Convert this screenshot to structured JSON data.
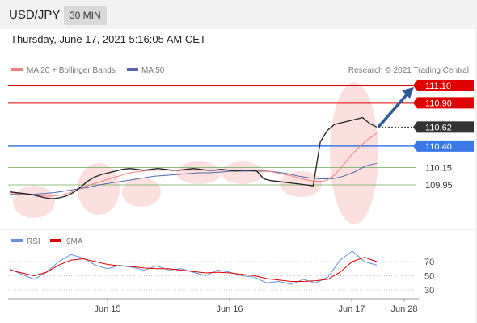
{
  "header": {
    "symbol": "USD/JPY",
    "timeframe": "30 MIN"
  },
  "datetime": "Thursday, June 17, 2021 5:16:05 AM CET",
  "legend": {
    "ma_bollinger": "MA 20 + Bollinger Bands",
    "ma50": "MA 50",
    "credit": "Research © 2021 Trading Central",
    "rsi": "RSI",
    "rsi_ma": "9MA"
  },
  "colors": {
    "resistance": "#e00000",
    "support_blue": "#3b78e7",
    "support_green": "#6aaa55",
    "current": "#333333",
    "price": "#222222",
    "ma20": "#f08080",
    "ma50": "#5566aa",
    "band": "#fbd5d5",
    "arrow": "#2e5a9c",
    "rsi": "#6a8fd8",
    "rsi_ma": "#e00000"
  },
  "chart_data": [
    {
      "type": "line",
      "y_range": [
        109.7,
        111.2
      ],
      "levels": [
        {
          "value": 111.1,
          "label": "111.10",
          "kind": "resistance"
        },
        {
          "value": 110.9,
          "label": "110.90",
          "kind": "resistance"
        },
        {
          "value": 110.62,
          "label": "110.62",
          "kind": "current"
        },
        {
          "value": 110.4,
          "label": "110.40",
          "kind": "support-blue"
        },
        {
          "value": 110.15,
          "label": "110.15",
          "kind": "support-green"
        },
        {
          "value": 109.95,
          "label": "109.95",
          "kind": "support-green"
        }
      ],
      "x_ticks": [
        "Jun 15",
        "Jun 16",
        "Jun 17",
        "Jun 28"
      ],
      "series": [
        {
          "name": "MA 20 + Bollinger Bands"
        },
        {
          "name": "MA 50"
        }
      ],
      "price": [
        109.87,
        109.86,
        109.85,
        109.84,
        109.82,
        109.8,
        109.79,
        109.8,
        109.82,
        109.86,
        109.92,
        109.99,
        110.04,
        110.07,
        110.09,
        110.11,
        110.13,
        110.14,
        110.13,
        110.12,
        110.13,
        110.14,
        110.13,
        110.12,
        110.12,
        110.13,
        110.14,
        110.13,
        110.12,
        110.12,
        110.13,
        110.12,
        110.11,
        110.12,
        110.12,
        110.11,
        110.02,
        110.0,
        109.99,
        109.98,
        109.97,
        109.96,
        109.95,
        109.94,
        110.45,
        110.58,
        110.65,
        110.67,
        110.69,
        110.71,
        110.73,
        110.66,
        110.62
      ],
      "ma20": [
        109.86,
        109.85,
        109.84,
        109.83,
        109.82,
        109.82,
        109.83,
        109.85,
        109.89,
        109.93,
        109.96,
        109.99,
        110.02,
        110.05,
        110.08,
        110.1,
        110.11,
        110.12,
        110.12,
        110.12,
        110.12,
        110.12,
        110.12,
        110.12,
        110.12,
        110.12,
        110.12,
        110.12,
        110.12,
        110.12,
        110.12,
        110.11,
        110.09,
        110.07,
        110.05,
        110.02,
        110.0,
        109.99,
        110.0,
        110.07,
        110.18,
        110.3,
        110.4,
        110.48,
        110.55
      ],
      "ma50": [
        109.84,
        109.84,
        109.84,
        109.85,
        109.86,
        109.88,
        109.9,
        109.92,
        109.95,
        109.97,
        109.99,
        110.01,
        110.03,
        110.05,
        110.06,
        110.07,
        110.08,
        110.09,
        110.09,
        110.1,
        110.11,
        110.11,
        110.11,
        110.11,
        110.1,
        110.08,
        110.05,
        110.03,
        110.02,
        110.02,
        110.05,
        110.1,
        110.17,
        110.2
      ]
    },
    {
      "type": "line",
      "y_ticks": [
        70,
        50,
        30
      ],
      "series": [
        {
          "name": "RSI",
          "values": [
            60,
            52,
            45,
            55,
            70,
            80,
            75,
            65,
            60,
            65,
            62,
            58,
            64,
            58,
            60,
            55,
            50,
            58,
            55,
            50,
            48,
            40,
            42,
            38,
            45,
            40,
            48,
            72,
            85,
            70,
            65
          ]
        },
        {
          "name": "9MA",
          "values": [
            58,
            54,
            50,
            55,
            65,
            72,
            74,
            70,
            66,
            64,
            63,
            61,
            60,
            60,
            58,
            56,
            54,
            55,
            54,
            52,
            50,
            46,
            44,
            42,
            42,
            43,
            45,
            55,
            70,
            76,
            70
          ]
        }
      ]
    }
  ]
}
